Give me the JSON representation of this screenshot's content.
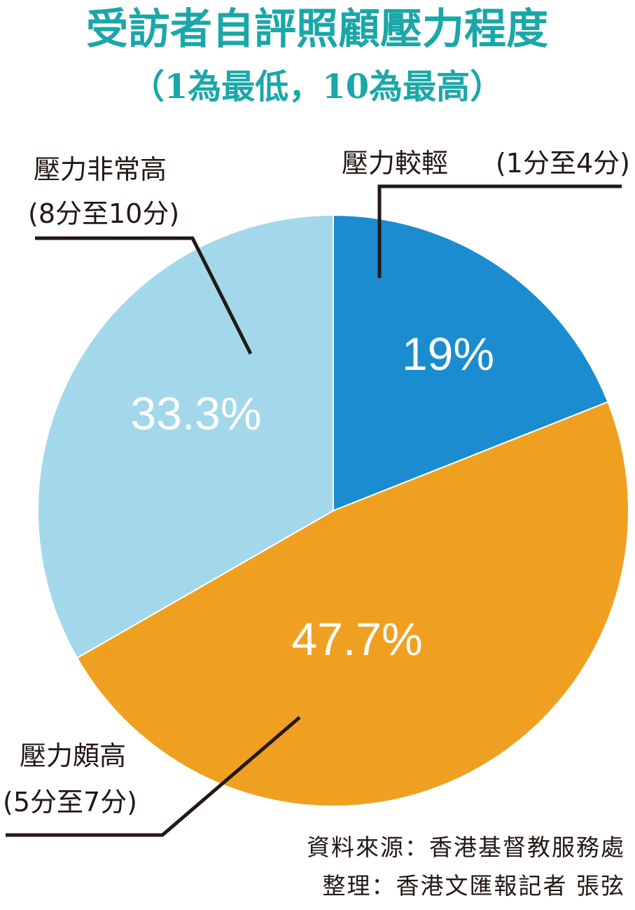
{
  "chart_data": {
    "type": "pie",
    "title": "受訪者自評照顧壓力程度",
    "subtitle": "（1為最低，10為最高）",
    "slices": [
      {
        "label_line1": "壓力較輕",
        "label_line2": "(1分至4分)",
        "value": 19,
        "value_label": "19%",
        "color": "#1a8ccf",
        "text_color": "#ffffff"
      },
      {
        "label_line1": "壓力頗高",
        "label_line2": "(5分至7分)",
        "value": 47.7,
        "value_label": "47.7%",
        "color": "#f0a020",
        "text_color": "#ffffff"
      },
      {
        "label_line1": "壓力非常高",
        "label_line2": "(8分至10分)",
        "value": 33.3,
        "value_label": "33.3%",
        "color": "#a2d8ea",
        "text_color": "#ffffff"
      }
    ]
  },
  "credits": {
    "source": "資料來源：香港基督教服務處",
    "compiled_by": "整理：香港文匯報記者 張弦"
  }
}
